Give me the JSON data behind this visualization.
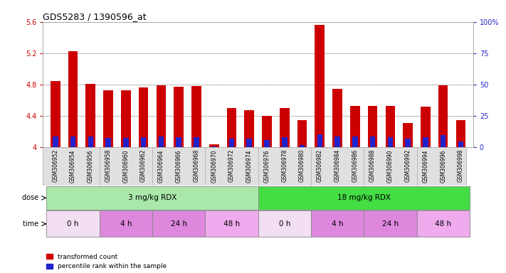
{
  "title": "GDS5283 / 1390596_at",
  "samples": [
    "GSM306952",
    "GSM306954",
    "GSM306956",
    "GSM306958",
    "GSM306960",
    "GSM306962",
    "GSM306964",
    "GSM306966",
    "GSM306968",
    "GSM306970",
    "GSM306972",
    "GSM306974",
    "GSM306976",
    "GSM306978",
    "GSM306980",
    "GSM306982",
    "GSM306984",
    "GSM306986",
    "GSM306988",
    "GSM306990",
    "GSM306992",
    "GSM306994",
    "GSM306996",
    "GSM306998"
  ],
  "red_values": [
    4.85,
    5.23,
    4.81,
    4.73,
    4.73,
    4.76,
    4.79,
    4.77,
    4.78,
    4.04,
    4.5,
    4.47,
    4.4,
    4.5,
    4.35,
    5.56,
    4.75,
    4.53,
    4.53,
    4.53,
    4.31,
    4.52,
    4.79,
    4.35
  ],
  "blue_values": [
    0.14,
    0.14,
    0.14,
    0.12,
    0.12,
    0.13,
    0.14,
    0.13,
    0.13,
    0.01,
    0.11,
    0.11,
    0.09,
    0.13,
    0.03,
    0.17,
    0.14,
    0.14,
    0.14,
    0.13,
    0.11,
    0.13,
    0.16,
    0.08
  ],
  "base": 4.0,
  "ylim_left": [
    4.0,
    5.6
  ],
  "yticks_left": [
    4.0,
    4.4,
    4.8,
    5.2,
    5.6
  ],
  "yticks_right": [
    0,
    25,
    50,
    75,
    100
  ],
  "ytick_labels_left": [
    "4",
    "4.4",
    "4.8",
    "5.2",
    "5.6"
  ],
  "ytick_labels_right": [
    "0",
    "25",
    "50",
    "75",
    "100%"
  ],
  "dose_groups": [
    {
      "text": "3 mg/kg RDX",
      "start": 0,
      "end": 12,
      "color": "#aae8aa"
    },
    {
      "text": "18 mg/kg RDX",
      "start": 12,
      "end": 24,
      "color": "#44dd44"
    }
  ],
  "time_groups": [
    {
      "text": "0 h",
      "start": 0,
      "end": 3,
      "color": "#f2dff2"
    },
    {
      "text": "4 h",
      "start": 3,
      "end": 6,
      "color": "#dd88dd"
    },
    {
      "text": "24 h",
      "start": 6,
      "end": 9,
      "color": "#dd88dd"
    },
    {
      "text": "48 h",
      "start": 9,
      "end": 12,
      "color": "#f0aaee"
    },
    {
      "text": "0 h",
      "start": 12,
      "end": 15,
      "color": "#f2dff2"
    },
    {
      "text": "4 h",
      "start": 15,
      "end": 18,
      "color": "#dd88dd"
    },
    {
      "text": "24 h",
      "start": 18,
      "end": 21,
      "color": "#dd88dd"
    },
    {
      "text": "48 h",
      "start": 21,
      "end": 24,
      "color": "#f0aaee"
    }
  ],
  "bar_color_red": "#cc0000",
  "bar_color_blue": "#2222cc",
  "bar_width": 0.55,
  "bg_color": "#ffffff",
  "label_color_left": "#cc0000",
  "label_color_right": "#2222cc",
  "legend_items": [
    {
      "label": "transformed count",
      "color": "#cc0000"
    },
    {
      "label": "percentile rank within the sample",
      "color": "#2222cc"
    }
  ]
}
